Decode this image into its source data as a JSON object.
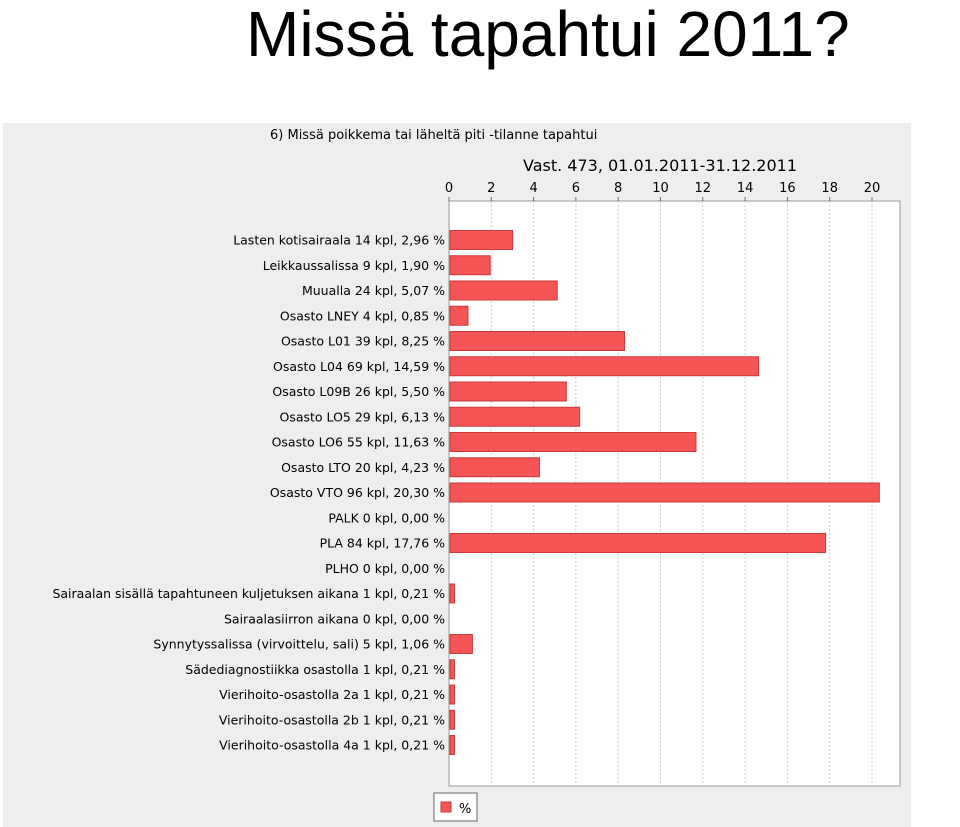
{
  "slide": {
    "title": "Missä tapahtui 2011?"
  },
  "chart_data": {
    "type": "bar",
    "orientation": "horizontal",
    "title": "6) Missä poikkema tai läheltä piti -tilanne tapahtui",
    "subtitle": "Vast. 473, 01.01.2011-31.12.2011",
    "xlim": [
      0,
      20
    ],
    "xticks": [
      0,
      2,
      4,
      6,
      8,
      10,
      12,
      14,
      16,
      18,
      20
    ],
    "grid": true,
    "legend_position": "bottom-center",
    "bar_color": "#f65555",
    "bar_edge_color": "#c93b3b",
    "categories": [
      "Lasten kotisairaala 14 kpl, 2,96 %",
      "Leikkaussalissa 9 kpl, 1,90 %",
      "Muualla 24 kpl, 5,07 %",
      "Osasto  LNEY 4 kpl, 0,85 %",
      "Osasto L01 39 kpl, 8,25 %",
      "Osasto L04 69 kpl, 14,59 %",
      "Osasto L09B 26 kpl, 5,50 %",
      "Osasto LO5 29 kpl, 6,13 %",
      "Osasto LO6 55 kpl, 11,63 %",
      "Osasto LTO 20 kpl, 4,23 %",
      "Osasto VTO 96 kpl, 20,30 %",
      "PALK 0 kpl, 0,00 %",
      "PLA 84 kpl, 17,76 %",
      "PLHO 0 kpl, 0,00 %",
      "Sairaalan sisällä tapahtuneen kuljetuksen aikana 1 kpl, 0,21 %",
      "Sairaalasiirron aikana 0 kpl, 0,00 %",
      "Synnytyssalissa (virvoittelu, sali) 5 kpl, 1,06 %",
      "Sädediagnostiikka osastolla 1 kpl, 0,21 %",
      "Vierihoito-osastolla 2a 1 kpl, 0,21 %",
      "Vierihoito-osastolla 2b 1 kpl, 0,21 %",
      "Vierihoito-osastolla 4a 1 kpl, 0,21 %"
    ],
    "series": [
      {
        "name": "%",
        "values": [
          2.96,
          1.9,
          5.07,
          0.85,
          8.25,
          14.59,
          5.5,
          6.13,
          11.63,
          4.23,
          20.3,
          0.0,
          17.76,
          0.0,
          0.21,
          0.0,
          1.06,
          0.21,
          0.21,
          0.21,
          0.21
        ]
      }
    ]
  }
}
